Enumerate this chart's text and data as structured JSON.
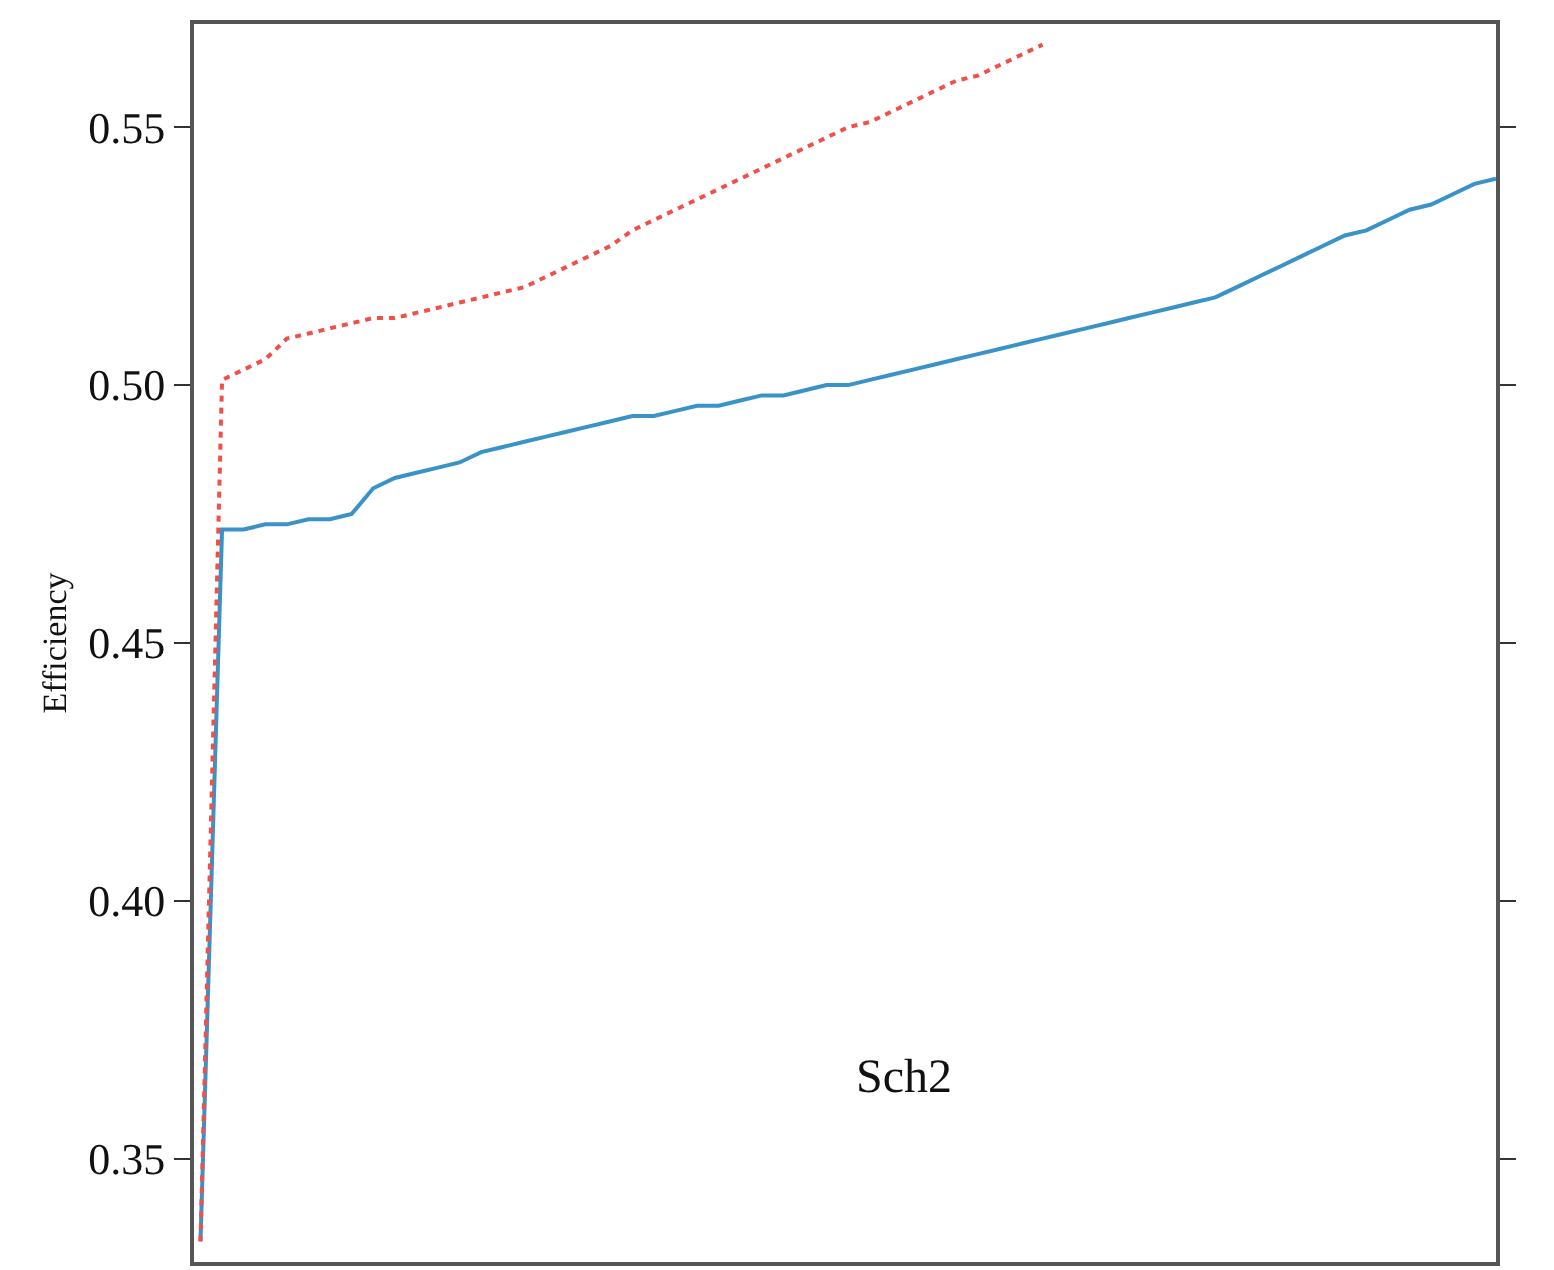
{
  "chart_data": {
    "type": "line",
    "ylabel": "Efficiency",
    "annotations": [
      "Sch2"
    ],
    "categories": [
      null,
      null,
      null,
      null,
      null,
      null,
      null,
      null,
      null,
      null,
      null,
      null,
      null,
      null,
      null,
      null,
      null,
      null,
      null,
      null,
      null,
      null,
      null,
      null,
      null,
      null,
      null,
      null,
      null,
      null,
      null,
      null,
      null,
      null,
      null,
      null,
      null,
      null,
      null,
      null,
      null,
      null,
      null,
      null,
      null,
      null,
      null,
      null,
      null,
      null,
      null,
      null,
      null,
      null,
      null,
      null,
      null,
      null,
      null,
      null,
      null
    ],
    "series": [
      {
        "color": "#3a93c8",
        "line_style": "solid",
        "values": [
          0.334,
          0.472,
          0.472,
          0.473,
          0.473,
          0.474,
          0.474,
          0.475,
          0.48,
          0.482,
          0.483,
          0.484,
          0.485,
          0.487,
          0.488,
          0.489,
          0.49,
          0.491,
          0.492,
          0.493,
          0.494,
          0.494,
          0.495,
          0.496,
          0.496,
          0.497,
          0.498,
          0.498,
          0.499,
          0.5,
          0.5,
          0.501,
          0.502,
          0.503,
          0.504,
          0.505,
          0.506,
          0.507,
          0.508,
          0.509,
          0.51,
          0.511,
          0.512,
          0.513,
          0.514,
          0.515,
          0.516,
          0.517,
          0.519,
          0.521,
          0.523,
          0.525,
          0.527,
          0.529,
          0.53,
          0.532,
          0.534,
          0.535,
          0.537,
          0.539,
          0.54
        ]
      },
      {
        "color": "#f0504a",
        "line_style": "dotted",
        "values": [
          0.334,
          0.501,
          0.503,
          0.505,
          0.509,
          0.51,
          0.511,
          0.512,
          0.513,
          0.513,
          0.514,
          0.515,
          0.516,
          0.517,
          0.518,
          0.519,
          0.521,
          0.523,
          0.525,
          0.527,
          0.53,
          0.532,
          0.534,
          0.536,
          0.538,
          0.54,
          0.542,
          0.544,
          0.546,
          0.548,
          0.55,
          0.551,
          0.553,
          0.555,
          0.557,
          0.559,
          0.56,
          0.562,
          0.564,
          0.566,
          null,
          null,
          null,
          null,
          null,
          null,
          null,
          null,
          null,
          null,
          null,
          null,
          null,
          null,
          null,
          null,
          null,
          null,
          null,
          null,
          null
        ]
      }
    ],
    "ylim": [
      0.33,
      0.57
    ],
    "yticks": [
      0.35,
      {
        "value": 0.4,
        "label": "0.40"
      },
      0.45,
      {
        "value": 0.5,
        "label": "0.50"
      },
      0.55
    ],
    "tick_labels": "y"
  }
}
